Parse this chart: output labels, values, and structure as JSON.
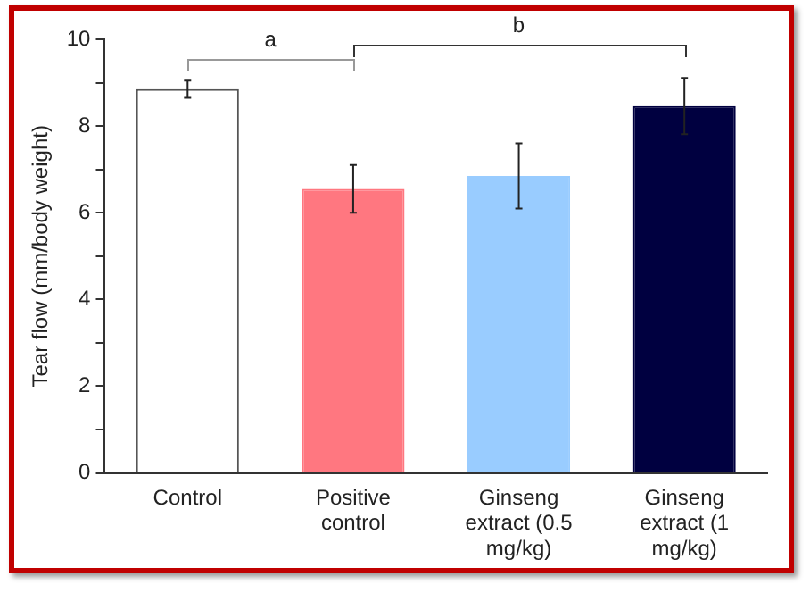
{
  "chart_data": {
    "type": "bar",
    "ylabel": "Tear flow (mm/body weight)",
    "categories": [
      "Control",
      "Positive control",
      "Ginseng extract (0.5 mg/kg)",
      "Ginseng extract (1 mg/kg)"
    ],
    "values": [
      8.85,
      6.55,
      6.85,
      8.46
    ],
    "colors": [
      "#ffffff",
      "#ff7780",
      "#99ccff",
      "#000040"
    ],
    "errors": [
      0.2,
      0.55,
      0.75,
      0.65
    ],
    "ylim": [
      0,
      10
    ],
    "yticks": [
      0,
      {
        "value": 1,
        "label": null
      },
      2,
      {
        "value": 3,
        "label": null
      },
      4,
      {
        "value": 5,
        "label": null
      },
      6,
      {
        "value": 7,
        "label": null
      },
      8,
      {
        "value": 9,
        "label": null
      },
      10
    ],
    "grid": false,
    "legend": false,
    "annotations": [
      "a",
      "b"
    ]
  }
}
